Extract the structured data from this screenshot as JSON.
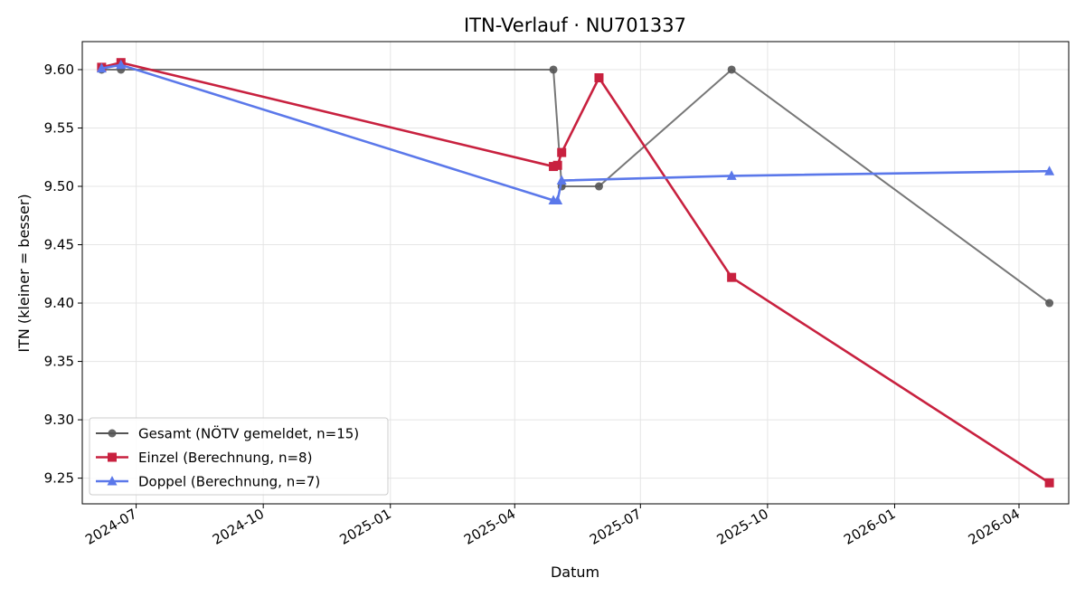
{
  "chart_data": {
    "type": "line",
    "title": "ITN-Verlauf · NU701337",
    "xlabel": "Datum",
    "ylabel": "ITN  (kleiner = besser)",
    "xlim": [
      "2024-05-23",
      "2026-05-07"
    ],
    "ylim": [
      9.228,
      9.624
    ],
    "x_ticks": [
      "2024-07",
      "2024-10",
      "2025-01",
      "2025-04",
      "2025-07",
      "2025-10",
      "2026-01",
      "2026-04"
    ],
    "y_ticks": [
      "9.25",
      "9.30",
      "9.35",
      "9.40",
      "9.45",
      "9.50",
      "9.55",
      "9.60"
    ],
    "grid": true,
    "legend_position": "lower-left",
    "series": [
      {
        "name": "Gesamt (NÖTV gemeldet, n=15)",
        "color": "#555555",
        "marker": "circle",
        "points": [
          {
            "x": "2024-06-06",
            "y": 9.6
          },
          {
            "x": "2024-06-20",
            "y": 9.6
          },
          {
            "x": "2025-04-29",
            "y": 9.6
          },
          {
            "x": "2025-05-05",
            "y": 9.5
          },
          {
            "x": "2025-06-01",
            "y": 9.5
          },
          {
            "x": "2025-09-05",
            "y": 9.6
          },
          {
            "x": "2026-04-23",
            "y": 9.4
          }
        ]
      },
      {
        "name": "Einzel (Berechnung, n=8)",
        "color": "#c8213f",
        "marker": "square",
        "points": [
          {
            "x": "2024-06-06",
            "y": 9.602
          },
          {
            "x": "2024-06-20",
            "y": 9.606
          },
          {
            "x": "2025-04-29",
            "y": 9.517
          },
          {
            "x": "2025-05-02",
            "y": 9.518
          },
          {
            "x": "2025-05-05",
            "y": 9.529
          },
          {
            "x": "2025-06-01",
            "y": 9.593
          },
          {
            "x": "2025-09-05",
            "y": 9.422
          },
          {
            "x": "2026-04-23",
            "y": 9.246
          }
        ]
      },
      {
        "name": "Doppel (Berechnung, n=7)",
        "color": "#5b78ea",
        "marker": "triangle",
        "points": [
          {
            "x": "2024-06-06",
            "y": 9.601
          },
          {
            "x": "2024-06-20",
            "y": 9.604
          },
          {
            "x": "2025-04-29",
            "y": 9.488
          },
          {
            "x": "2025-05-02",
            "y": 9.488
          },
          {
            "x": "2025-05-05",
            "y": 9.505
          },
          {
            "x": "2025-09-05",
            "y": 9.509
          },
          {
            "x": "2026-04-23",
            "y": 9.513
          }
        ]
      }
    ]
  }
}
